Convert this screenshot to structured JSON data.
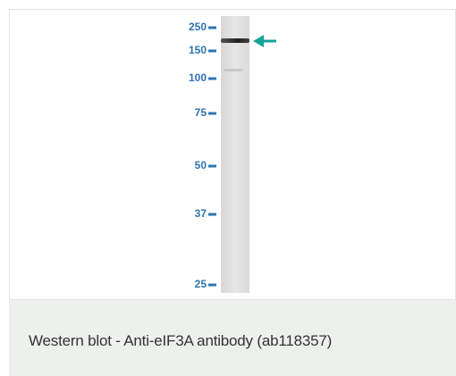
{
  "figure": {
    "markers": [
      "250",
      "150",
      "100",
      "75",
      "50",
      "37",
      "25"
    ]
  },
  "caption": "Western blot - Anti-eIF3A antibody (ab118357)"
}
